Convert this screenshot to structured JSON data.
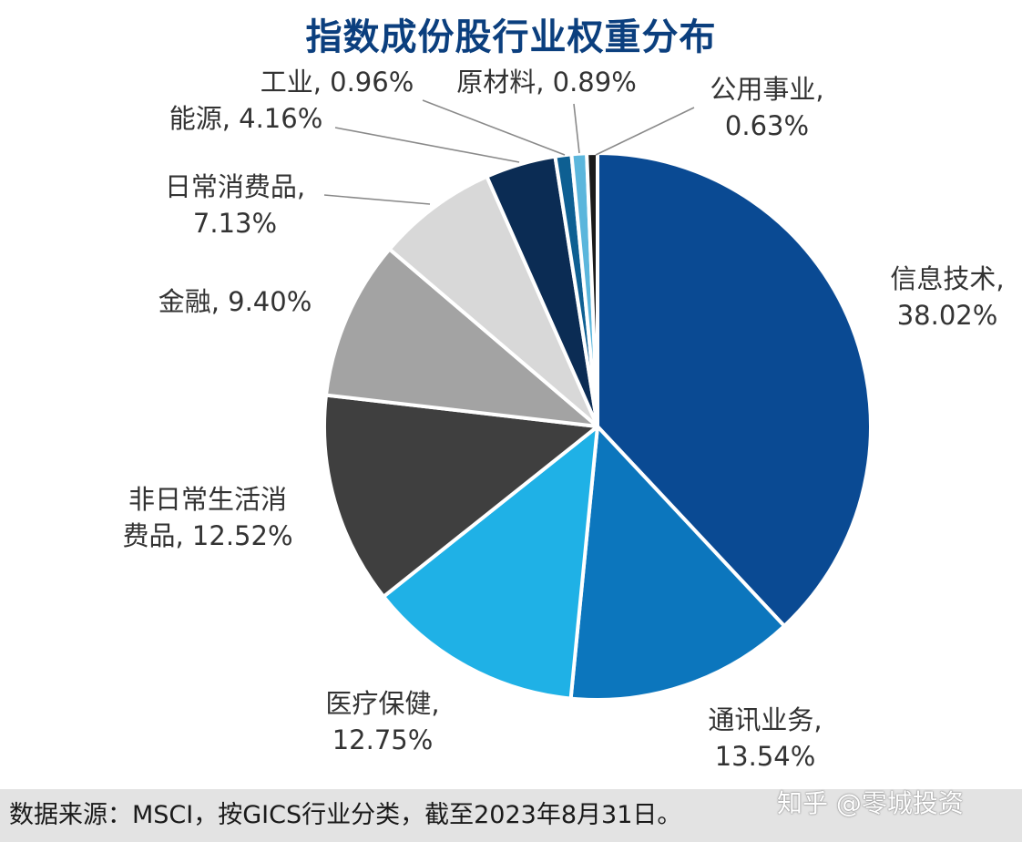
{
  "chart_data": {
    "type": "pie",
    "title": "指数成份股行业权重分布",
    "slices": [
      {
        "label_lines": [
          "信息技术,",
          "38.02%"
        ],
        "value": 38.02,
        "color": "#0a4a93"
      },
      {
        "label_lines": [
          "通讯业务,",
          "13.54%"
        ],
        "value": 13.54,
        "color": "#0c76bd"
      },
      {
        "label_lines": [
          "医疗保健,",
          "12.75%"
        ],
        "value": 12.75,
        "color": "#1fb1e6"
      },
      {
        "label_lines": [
          "非日常生活消",
          "费品, 12.52%"
        ],
        "value": 12.52,
        "color": "#3f3f3f"
      },
      {
        "label_lines": [
          "金融, 9.40%"
        ],
        "value": 9.4,
        "color": "#a3a3a3"
      },
      {
        "label_lines": [
          "日常消费品,",
          "7.13%"
        ],
        "value": 7.13,
        "color": "#d8d8d8"
      },
      {
        "label_lines": [
          "能源, 4.16%"
        ],
        "value": 4.16,
        "color": "#0b2c54"
      },
      {
        "label_lines": [
          "工业, 0.96%"
        ],
        "value": 0.96,
        "color": "#0e5f92"
      },
      {
        "label_lines": [
          "原材料, 0.89%"
        ],
        "value": 0.89,
        "color": "#5bb6dc"
      },
      {
        "label_lines": [
          "公用事业,",
          "0.63%"
        ],
        "value": 0.63,
        "color": "#1a1a1a"
      }
    ]
  },
  "footer": {
    "source": "数据来源：MSCI，按GICS行业分类，截至2023年8月31日。",
    "watermark": "知乎 @零城投资"
  }
}
